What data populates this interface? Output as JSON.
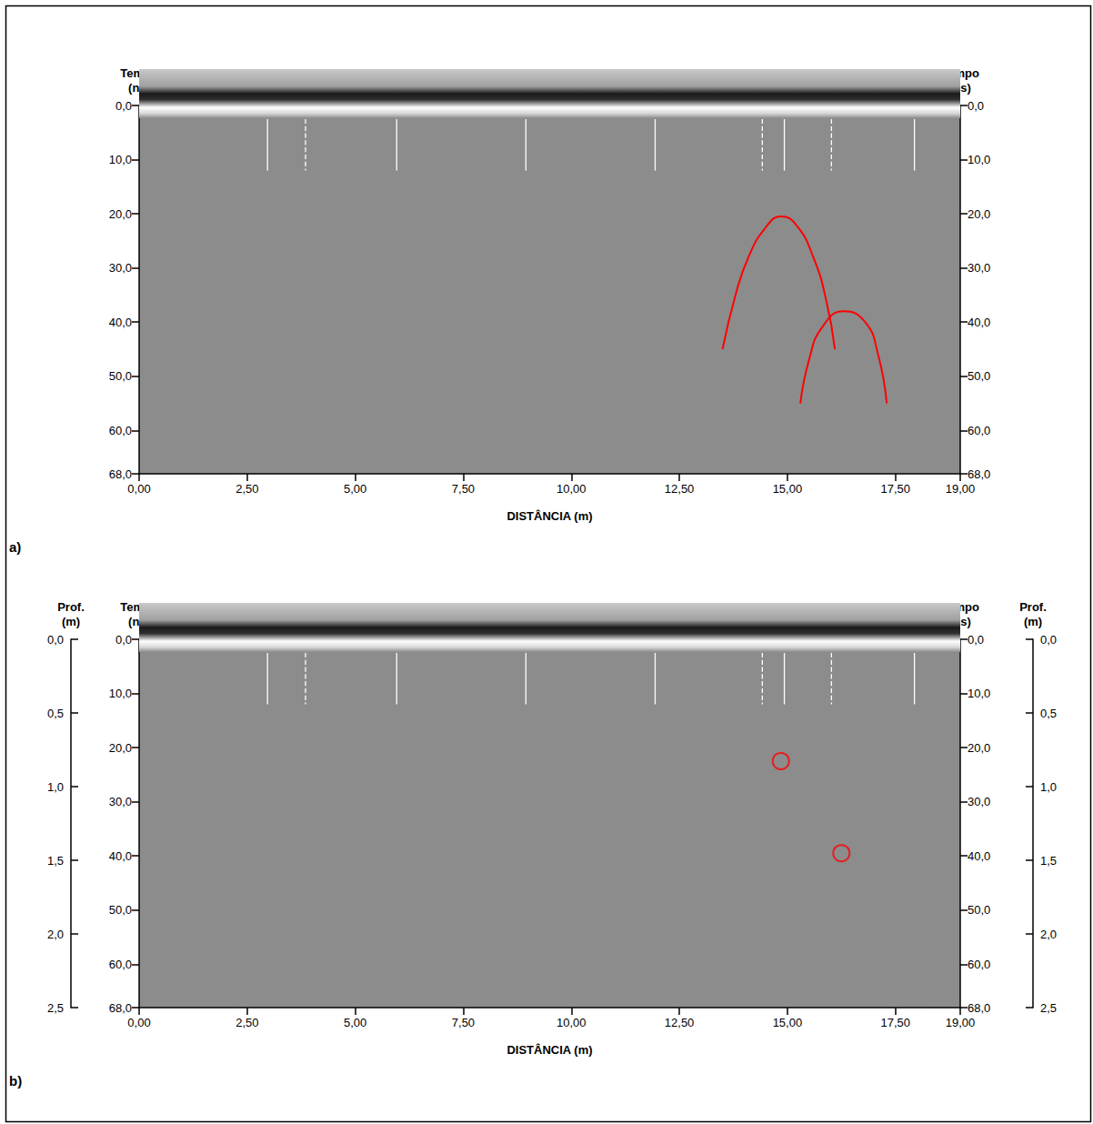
{
  "chart_data": [
    {
      "type": "radargram",
      "panel": "a)",
      "x_label": "DISTÂNCIA (m)",
      "y_label": "Tempo (ns)",
      "xlim": [
        0,
        19
      ],
      "xticks": [
        {
          "value": 0,
          "label": "0,00"
        },
        {
          "value": 2.5,
          "label": "2,50"
        },
        {
          "value": 5,
          "label": "5,00"
        },
        {
          "value": 7.5,
          "label": "7,50"
        },
        {
          "value": 10,
          "label": "10,00"
        },
        {
          "value": 12.5,
          "label": "12,50"
        },
        {
          "value": 15,
          "label": "15,00"
        },
        {
          "value": 17.5,
          "label": "17,50"
        },
        {
          "value": 19,
          "label": "19,00"
        }
      ],
      "ylim": [
        0,
        68
      ],
      "yticks": [
        {
          "value": 0,
          "label": "0,0"
        },
        {
          "value": 10,
          "label": "10,0"
        },
        {
          "value": 20,
          "label": "20,0"
        },
        {
          "value": 30,
          "label": "30,0"
        },
        {
          "value": 40,
          "label": "40,0"
        },
        {
          "value": 50,
          "label": "50,0"
        },
        {
          "value": 60,
          "label": "60,0"
        },
        {
          "value": 68,
          "label": "68,0"
        }
      ],
      "series": [
        {
          "type": "line",
          "color": "#ff0000",
          "line_style": "solid",
          "x": [
            13.5,
            13.8,
            14.1,
            14.5,
            14.85,
            15.2,
            15.6,
            15.9,
            16.1
          ],
          "values": [
            45,
            35,
            28,
            22.5,
            20.5,
            22,
            28,
            36,
            45
          ]
        },
        {
          "type": "line",
          "color": "#ff0000",
          "line_style": "solid",
          "x": [
            15.3,
            15.5,
            15.8,
            16.3,
            16.8,
            17.1,
            17.3
          ],
          "values": [
            55,
            47,
            41,
            38,
            40,
            46,
            55
          ]
        },
        {
          "type": "line",
          "color": "#ffffff",
          "line_style": "solid",
          "x": [
            2.97,
            2.97
          ],
          "values": [
            2.5,
            12
          ]
        },
        {
          "type": "line",
          "color": "#ffffff",
          "line_style": "dashed",
          "x": [
            3.85,
            3.85
          ],
          "values": [
            2.5,
            12
          ]
        },
        {
          "type": "line",
          "color": "#ffffff",
          "line_style": "solid",
          "x": [
            5.96,
            5.96
          ],
          "values": [
            2.5,
            12
          ]
        },
        {
          "type": "line",
          "color": "#ffffff",
          "line_style": "solid",
          "x": [
            8.95,
            8.95
          ],
          "values": [
            2.5,
            12
          ]
        },
        {
          "type": "line",
          "color": "#ffffff",
          "line_style": "solid",
          "x": [
            11.94,
            11.94
          ],
          "values": [
            2.5,
            12
          ]
        },
        {
          "type": "line",
          "color": "#ffffff",
          "line_style": "dashed",
          "x": [
            14.42,
            14.42
          ],
          "values": [
            2.5,
            12
          ]
        },
        {
          "type": "line",
          "color": "#ffffff",
          "line_style": "solid",
          "x": [
            14.93,
            14.93
          ],
          "values": [
            2.5,
            12
          ]
        },
        {
          "type": "line",
          "color": "#ffffff",
          "line_style": "dashed",
          "x": [
            16.02,
            16.02
          ],
          "values": [
            2.5,
            12
          ]
        },
        {
          "type": "line",
          "color": "#ffffff",
          "line_style": "solid",
          "x": [
            17.94,
            17.94
          ],
          "values": [
            2.5,
            12
          ]
        }
      ]
    },
    {
      "type": "radargram",
      "panel": "b)",
      "x_label": "DISTÂNCIA (m)",
      "y_label": "Tempo (ns)",
      "y2_label": "Prof. (m)",
      "xlim": [
        0,
        19
      ],
      "xticks": [
        {
          "value": 0,
          "label": "0,00"
        },
        {
          "value": 2.5,
          "label": "2,50"
        },
        {
          "value": 5,
          "label": "5,00"
        },
        {
          "value": 7.5,
          "label": "7,50"
        },
        {
          "value": 10,
          "label": "10,00"
        },
        {
          "value": 12.5,
          "label": "12,50"
        },
        {
          "value": 15,
          "label": "15,00"
        },
        {
          "value": 17.5,
          "label": "17,50"
        },
        {
          "value": 19,
          "label": "19,00"
        }
      ],
      "ylim": [
        0,
        68
      ],
      "yticks": [
        {
          "value": 0,
          "label": "0,0"
        },
        {
          "value": 10,
          "label": "10,0"
        },
        {
          "value": 20,
          "label": "20,0"
        },
        {
          "value": 30,
          "label": "30,0"
        },
        {
          "value": 40,
          "label": "40,0"
        },
        {
          "value": 50,
          "label": "50,0"
        },
        {
          "value": 60,
          "label": "60,0"
        },
        {
          "value": 68,
          "label": "68,0"
        }
      ],
      "y2lim": [
        0,
        2.5
      ],
      "y2ticks": [
        {
          "value": 0,
          "label": "0,0"
        },
        {
          "value": 0.5,
          "label": "0,5"
        },
        {
          "value": 1,
          "label": "1,0"
        },
        {
          "value": 1.5,
          "label": "1,5"
        },
        {
          "value": 2,
          "label": "2,0"
        },
        {
          "value": 2.5,
          "label": "2,5"
        }
      ],
      "series": [
        {
          "type": "scatter",
          "color": "#ff0000",
          "marker": "circle",
          "x": [
            14.85,
            16.25
          ],
          "values": [
            22.5,
            39.5
          ]
        },
        {
          "type": "line",
          "color": "#ffffff",
          "line_style": "solid",
          "x": [
            2.97,
            2.97
          ],
          "values": [
            2.5,
            12
          ]
        },
        {
          "type": "line",
          "color": "#ffffff",
          "line_style": "dashed",
          "x": [
            3.85,
            3.85
          ],
          "values": [
            2.5,
            12
          ]
        },
        {
          "type": "line",
          "color": "#ffffff",
          "line_style": "solid",
          "x": [
            5.96,
            5.96
          ],
          "values": [
            2.5,
            12
          ]
        },
        {
          "type": "line",
          "color": "#ffffff",
          "line_style": "solid",
          "x": [
            8.95,
            8.95
          ],
          "values": [
            2.5,
            12
          ]
        },
        {
          "type": "line",
          "color": "#ffffff",
          "line_style": "solid",
          "x": [
            11.94,
            11.94
          ],
          "values": [
            2.5,
            12
          ]
        },
        {
          "type": "line",
          "color": "#ffffff",
          "line_style": "dashed",
          "x": [
            14.42,
            14.42
          ],
          "values": [
            2.5,
            12
          ]
        },
        {
          "type": "line",
          "color": "#ffffff",
          "line_style": "solid",
          "x": [
            14.93,
            14.93
          ],
          "values": [
            2.5,
            12
          ]
        },
        {
          "type": "line",
          "color": "#ffffff",
          "line_style": "dashed",
          "x": [
            16.02,
            16.02
          ],
          "values": [
            2.5,
            12
          ]
        },
        {
          "type": "line",
          "color": "#ffffff",
          "line_style": "solid",
          "x": [
            17.94,
            17.94
          ],
          "values": [
            2.5,
            12
          ]
        }
      ]
    }
  ]
}
